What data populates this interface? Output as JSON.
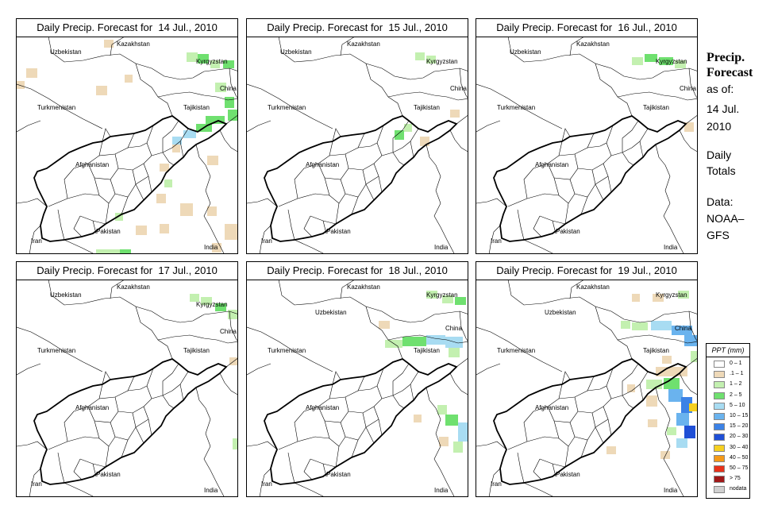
{
  "title_prefix": "Daily Precip. Forecast for",
  "panels": [
    {
      "date": "14 Jul., 2010"
    },
    {
      "date": "15 Jul., 2010"
    },
    {
      "date": "16 Jul., 2010"
    },
    {
      "date": "17 Jul., 2010"
    },
    {
      "date": "18 Jul., 2010"
    },
    {
      "date": "19 Jul., 2010"
    }
  ],
  "countries": {
    "kazakhstan": "Kazakhstan",
    "uzbekistan": "Uzbekistan",
    "kyrgyzstan": "Kyrgyzstan",
    "china": "China",
    "turkmenistan": "Turkmenistan",
    "tajikistan": "Tajikistan",
    "afghanistan": "Afghanistan",
    "iran": "Iran",
    "pakistan": "Pakistan",
    "india": "India"
  },
  "side": {
    "heading_line1": "Precip.",
    "heading_line2": "Forecast",
    "asof": "as of:",
    "date_line1": "14 Jul.",
    "date_line2": "2010",
    "totals_line1": "Daily",
    "totals_line2": "Totals",
    "data_line1": "Data:",
    "data_line2": "NOAA–",
    "data_line3": "GFS"
  },
  "legend": {
    "title": "PPT (mm)",
    "items": [
      {
        "label": "0 – 1",
        "color": "#ffffff"
      },
      {
        "label": ".1 – 1",
        "color": "#eed9b8"
      },
      {
        "label": "1 – 2",
        "color": "#c3f0b0"
      },
      {
        "label": "2 – 5",
        "color": "#6fe06f"
      },
      {
        "label": "5 – 10",
        "color": "#a8dcf2"
      },
      {
        "label": "10 – 15",
        "color": "#6ab3ee"
      },
      {
        "label": "15 – 20",
        "color": "#3c82e6"
      },
      {
        "label": "20 – 30",
        "color": "#1f4fd6"
      },
      {
        "label": "30 – 40",
        "color": "#f6d020"
      },
      {
        "label": "40 – 50",
        "color": "#f59a18"
      },
      {
        "label": "50 – 75",
        "color": "#e8321a"
      },
      {
        "label": "> 75",
        "color": "#a01818"
      },
      {
        "label": "nodata",
        "color": "#d0d0d0"
      }
    ]
  }
}
